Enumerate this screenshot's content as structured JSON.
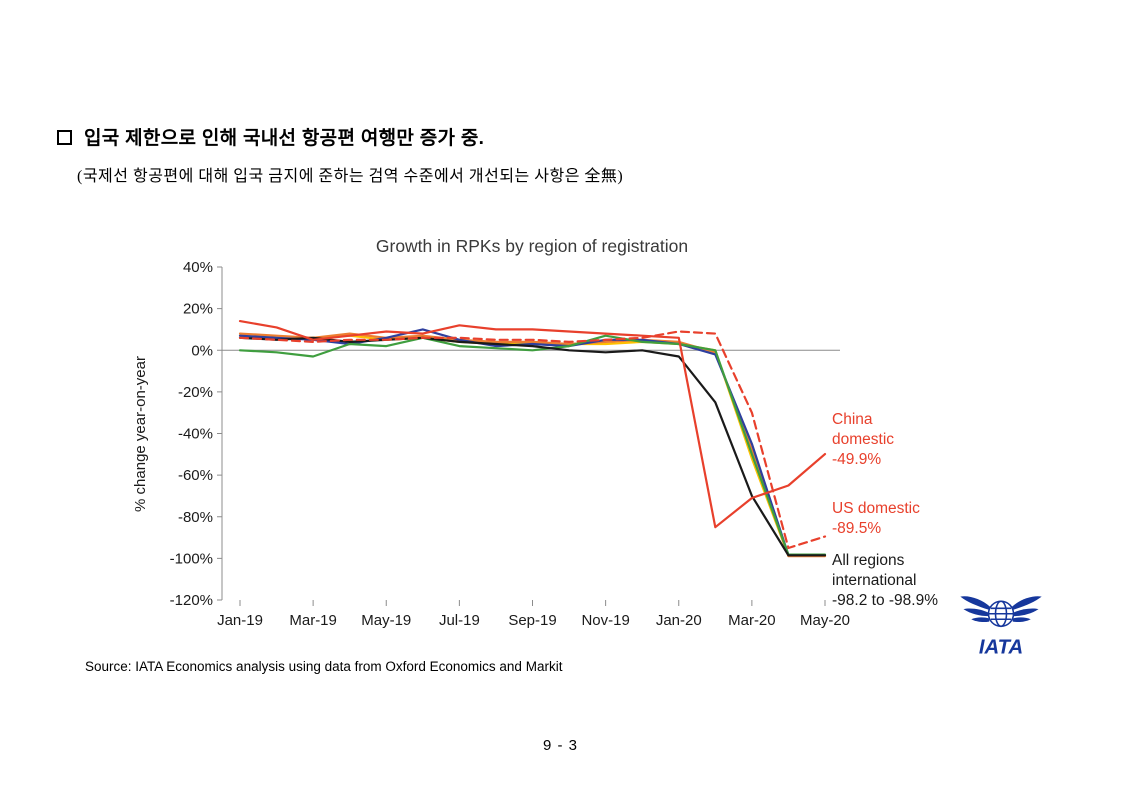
{
  "page": {
    "heading": "입국 제한으로 인해 국내선 항공편 여행만 증가 중.",
    "subheading": "(국제선 항공편에 대해 입국 금지에 준하는 검역 수준에서 개선되는 사항은 全無)",
    "source_note": "Source: IATA Economics analysis using data from Oxford Economics and Markit",
    "page_number": "9 - 3"
  },
  "logo": {
    "text": "IATA",
    "color": "#16379c"
  },
  "chart_data": {
    "type": "line",
    "title": "Growth in RPKs by region of registration",
    "ylabel": "% change year-on-year",
    "xlabel": "",
    "ylim": [
      -120,
      40
    ],
    "ytick_step": 20,
    "grid": false,
    "legend_position": "none",
    "x": [
      "Jan-19",
      "Feb-19",
      "Mar-19",
      "Apr-19",
      "May-19",
      "Jun-19",
      "Jul-19",
      "Aug-19",
      "Sep-19",
      "Oct-19",
      "Nov-19",
      "Dec-19",
      "Jan-20",
      "Feb-20",
      "Mar-20",
      "Apr-20",
      "May-20"
    ],
    "xticks": [
      "Jan-19",
      "Mar-19",
      "May-19",
      "Jul-19",
      "Sep-19",
      "Nov-19",
      "Jan-20",
      "Mar-20",
      "May-20"
    ],
    "series": [
      {
        "id": "intl-yellow",
        "name": "International (yellow line)",
        "color": "#ffc000",
        "dash": "solid",
        "values": [
          7,
          6,
          6,
          7,
          5,
          6,
          4,
          3,
          3,
          3,
          3,
          4,
          3,
          0,
          -52,
          -98.7,
          -98.7
        ]
      },
      {
        "id": "intl-orange",
        "name": "International (orange line)",
        "color": "#ed7d31",
        "dash": "solid",
        "values": [
          8,
          7,
          6,
          8,
          6,
          7,
          5,
          4,
          4,
          3,
          4,
          5,
          4,
          -1,
          -48,
          -98.9,
          -98.9
        ]
      },
      {
        "id": "intl-blue",
        "name": "International (blue line)",
        "color": "#2e3f9e",
        "dash": "solid",
        "values": [
          7,
          6,
          5,
          3,
          6,
          10,
          5,
          2,
          3,
          2,
          5,
          5,
          3,
          -2,
          -45,
          -98.4,
          -98.4
        ]
      },
      {
        "id": "intl-green",
        "name": "International (green line)",
        "color": "#3f9e3f",
        "dash": "solid",
        "values": [
          0,
          -1,
          -3,
          3,
          2,
          6,
          2,
          1,
          0,
          2,
          7,
          4,
          3,
          0,
          -50,
          -98.2,
          -98.2
        ]
      },
      {
        "id": "intl-black",
        "name": "International (black line)",
        "color": "#1a1a1a",
        "dash": "solid",
        "values": [
          6,
          5,
          6,
          4,
          5,
          6,
          4,
          3,
          2,
          0,
          -1,
          0,
          -3,
          -25,
          -70,
          -98.5,
          -98.5
        ]
      },
      {
        "id": "us-domestic",
        "name": "US domestic",
        "color": "#e8402c",
        "dash": "dashed",
        "values": [
          6,
          5,
          4,
          5,
          5,
          6,
          6,
          5,
          5,
          4,
          5,
          6,
          9,
          8,
          -30,
          -95,
          -89.5
        ]
      },
      {
        "id": "china-domestic",
        "name": "China domestic",
        "color": "#e8402c",
        "dash": "solid",
        "values": [
          14,
          11,
          5,
          7,
          9,
          8,
          12,
          10,
          10,
          9,
          8,
          7,
          6,
          -85,
          -71,
          -65,
          -49.9
        ]
      }
    ],
    "annotations": [
      {
        "id": "china-domestic",
        "color": "#e8402c",
        "lines": [
          "China",
          "domestic",
          "-49.9%"
        ]
      },
      {
        "id": "us-domestic",
        "color": "#e8402c",
        "lines": [
          "US domestic",
          "-89.5%"
        ]
      },
      {
        "id": "all-regions-international",
        "color": "#1a1a1a",
        "lines": [
          "All regions",
          "international",
          "-98.2 to -98.9%"
        ]
      }
    ]
  }
}
